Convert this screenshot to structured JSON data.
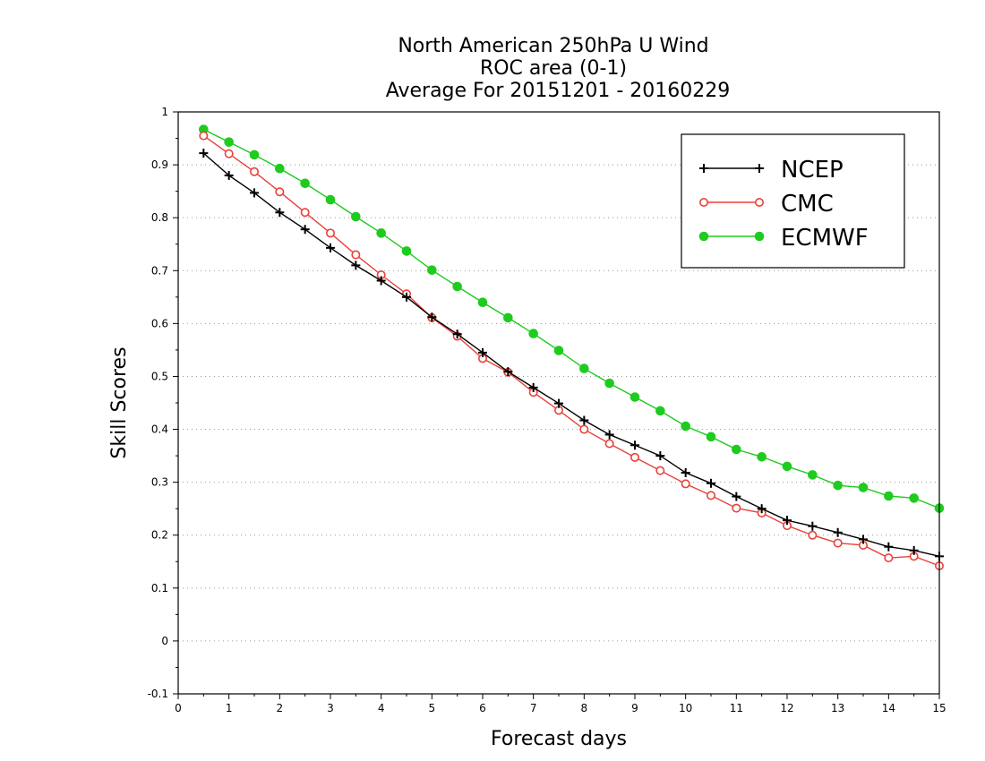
{
  "chart_data": {
    "type": "line",
    "title": [
      "North American 250hPa U Wind",
      "ROC area (0-1)",
      "Average For 20151201 - 20160229"
    ],
    "xlabel": "Forecast days",
    "ylabel": "Skill Scores",
    "xlim": [
      0,
      15
    ],
    "ylim": [
      -0.1,
      1
    ],
    "xticks": [
      0,
      1,
      2,
      3,
      4,
      5,
      6,
      7,
      8,
      9,
      10,
      11,
      12,
      13,
      14,
      15
    ],
    "yticks": [
      -0.1,
      0,
      0.1,
      0.2,
      0.3,
      0.4,
      0.5,
      0.6,
      0.7,
      0.8,
      0.9,
      1
    ],
    "ytick_labels": [
      "-0.1",
      "0",
      "0.1",
      "0.2",
      "0.3",
      "0.4",
      "0.5",
      "0.6",
      "0.7",
      "0.8",
      "0.9",
      "1"
    ],
    "grid": "horizontal-dotted",
    "legend_position": "top-right",
    "x": [
      0.5,
      1,
      1.5,
      2,
      2.5,
      3,
      3.5,
      4,
      4.5,
      5,
      5.5,
      6,
      6.5,
      7,
      7.5,
      8,
      8.5,
      9,
      9.5,
      10,
      10.5,
      11,
      11.5,
      12,
      12.5,
      13,
      13.5,
      14,
      14.5,
      15
    ],
    "series": [
      {
        "name": "NCEP",
        "color": "#000000",
        "marker": "plus",
        "values": [
          0.922,
          0.88,
          0.847,
          0.81,
          0.778,
          0.743,
          0.71,
          0.681,
          0.65,
          0.612,
          0.58,
          0.545,
          0.509,
          0.479,
          0.449,
          0.417,
          0.39,
          0.37,
          0.35,
          0.318,
          0.298,
          0.273,
          0.25,
          0.228,
          0.217,
          0.205,
          0.192,
          0.178,
          0.171,
          0.16
        ]
      },
      {
        "name": "CMC",
        "color": "#e8413a",
        "marker": "open-circle",
        "values": [
          0.955,
          0.921,
          0.887,
          0.849,
          0.81,
          0.771,
          0.73,
          0.692,
          0.656,
          0.611,
          0.576,
          0.534,
          0.508,
          0.47,
          0.436,
          0.4,
          0.373,
          0.347,
          0.322,
          0.297,
          0.275,
          0.251,
          0.242,
          0.218,
          0.2,
          0.185,
          0.181,
          0.157,
          0.16,
          0.142
        ]
      },
      {
        "name": "ECMWF",
        "color": "#1ecb1e",
        "marker": "filled-circle",
        "values": [
          0.967,
          0.943,
          0.919,
          0.893,
          0.865,
          0.834,
          0.802,
          0.771,
          0.737,
          0.701,
          0.67,
          0.64,
          0.611,
          0.581,
          0.549,
          0.515,
          0.487,
          0.461,
          0.435,
          0.406,
          0.386,
          0.362,
          0.348,
          0.33,
          0.314,
          0.294,
          0.29,
          0.274,
          0.27,
          0.251
        ]
      }
    ]
  }
}
